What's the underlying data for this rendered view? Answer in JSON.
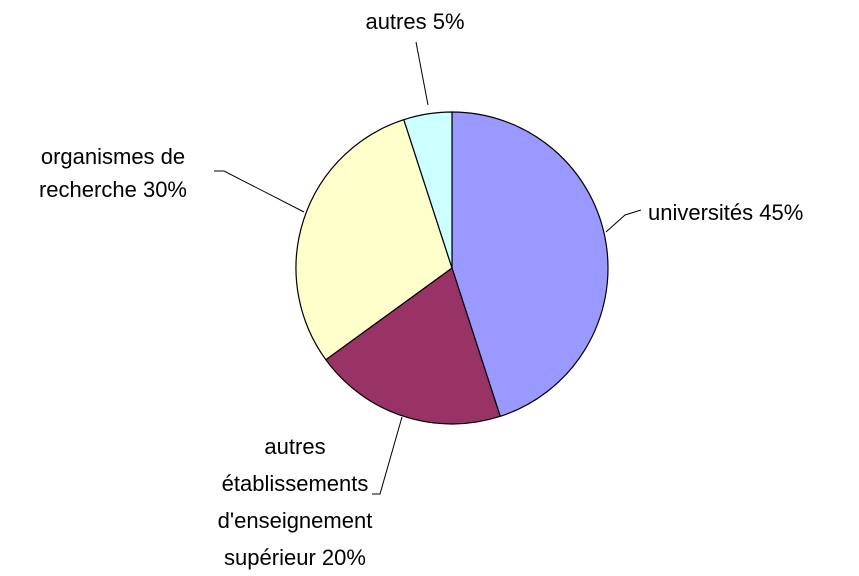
{
  "chart_data": {
    "type": "pie",
    "categories": [
      "universités",
      "autres établissements d'enseignement supérieur",
      "organismes de recherche",
      "autres"
    ],
    "values": [
      45,
      20,
      30,
      5
    ],
    "value_labels": [
      "45%",
      "20%",
      "30%",
      "5%"
    ],
    "colors": [
      "#9999ff",
      "#993366",
      "#ffffcc",
      "#ccffff"
    ]
  }
}
